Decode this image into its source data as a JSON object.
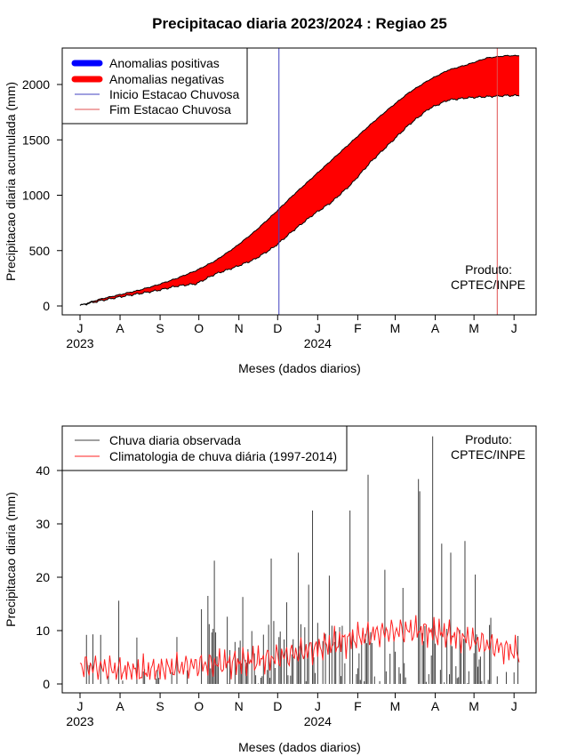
{
  "chart_data": [
    {
      "type": "area",
      "title": "Precipitacao diaria 2023/2024 : Regiao 25",
      "xlabel": "Meses (dados diarios)",
      "ylabel": "Precipitacao diaria acumulada (mm)",
      "ylim": [
        0,
        2300
      ],
      "yticks": [
        0,
        500,
        1000,
        1500,
        2000
      ],
      "xtick_labels": [
        "J",
        "A",
        "S",
        "O",
        "N",
        "D",
        "J",
        "F",
        "M",
        "A",
        "M",
        "J"
      ],
      "year_labels": [
        "2023",
        "2024"
      ],
      "credit": [
        "Produto:",
        "CPTEC/INPE"
      ],
      "legend": {
        "position": "top-left",
        "items": [
          {
            "label": "Anomalias positivas",
            "color": "#0000ff",
            "style": "thick"
          },
          {
            "label": "Anomalias negativas",
            "color": "#ff0000",
            "style": "thick"
          },
          {
            "label": "Inicio Estacao Chuvosa",
            "color": "#4040c0",
            "style": "thin"
          },
          {
            "label": "Fim Estacao Chuvosa",
            "color": "#e05050",
            "style": "thin"
          }
        ]
      },
      "x_days": [
        0,
        15,
        30,
        45,
        60,
        75,
        90,
        105,
        120,
        135,
        150,
        165,
        180,
        195,
        210,
        225,
        240,
        255,
        270,
        285,
        300,
        315,
        330,
        340
      ],
      "series": [
        {
          "name": "climatologia acumulada",
          "values": [
            5,
            60,
            100,
            140,
            190,
            250,
            320,
            410,
            530,
            670,
            830,
            1000,
            1160,
            1320,
            1480,
            1640,
            1790,
            1930,
            2040,
            2130,
            2180,
            2240,
            2260,
            2260
          ]
        },
        {
          "name": "observada acumulada",
          "values": [
            5,
            45,
            80,
            110,
            140,
            180,
            200,
            290,
            350,
            420,
            530,
            680,
            820,
            940,
            1100,
            1300,
            1470,
            1640,
            1780,
            1860,
            1880,
            1890,
            1900,
            1900
          ]
        }
      ],
      "season_start_day": 154,
      "season_end_day": 323,
      "anomaly_fill_color": "#ff0000"
    },
    {
      "type": "bar",
      "title": "",
      "xlabel": "Meses (dados diarios)",
      "ylabel": "Precipitacao diaria (mm)",
      "ylim": [
        0,
        48
      ],
      "yticks": [
        0,
        10,
        20,
        30,
        40
      ],
      "xtick_labels": [
        "J",
        "A",
        "S",
        "O",
        "N",
        "D",
        "J",
        "F",
        "M",
        "A",
        "M",
        "J"
      ],
      "year_labels": [
        "2023",
        "2024"
      ],
      "credit": [
        "Produto:",
        "CPTEC/INPE"
      ],
      "legend": {
        "position": "top-left",
        "items": [
          {
            "label": "Chuva diaria observada",
            "color": "#404040",
            "style": "thin"
          },
          {
            "label": "Climatologia de chuva diária (1997-2014)",
            "color": "#ff2020",
            "style": "thin"
          }
        ]
      },
      "bar_color": "#404040",
      "clim_color": "#ff2020",
      "peaks": [
        {
          "day": 5,
          "value": 9.2
        },
        {
          "day": 10,
          "value": 9.3
        },
        {
          "day": 16,
          "value": 9.2
        },
        {
          "day": 30,
          "value": 15.6
        },
        {
          "day": 44,
          "value": 8.7
        },
        {
          "day": 75,
          "value": 8.8
        },
        {
          "day": 94,
          "value": 14.0
        },
        {
          "day": 99,
          "value": 16.5
        },
        {
          "day": 104,
          "value": 23.1
        },
        {
          "day": 114,
          "value": 12.6
        },
        {
          "day": 126,
          "value": 16.3
        },
        {
          "day": 148,
          "value": 23.5
        },
        {
          "day": 160,
          "value": 15.3
        },
        {
          "day": 169,
          "value": 24.6
        },
        {
          "day": 177,
          "value": 18.6
        },
        {
          "day": 180,
          "value": 32.5
        },
        {
          "day": 193,
          "value": 20.3
        },
        {
          "day": 209,
          "value": 32.5
        },
        {
          "day": 223,
          "value": 39.2
        },
        {
          "day": 236,
          "value": 21.4
        },
        {
          "day": 250,
          "value": 18.0
        },
        {
          "day": 262,
          "value": 38.4
        },
        {
          "day": 263,
          "value": 36.1
        },
        {
          "day": 273,
          "value": 46.4
        },
        {
          "day": 280,
          "value": 26.3
        },
        {
          "day": 287,
          "value": 24.6
        },
        {
          "day": 298,
          "value": 26.8
        },
        {
          "day": 306,
          "value": 20.5
        },
        {
          "day": 318,
          "value": 12.4
        },
        {
          "day": 339,
          "value": 9.0
        }
      ]
    }
  ]
}
